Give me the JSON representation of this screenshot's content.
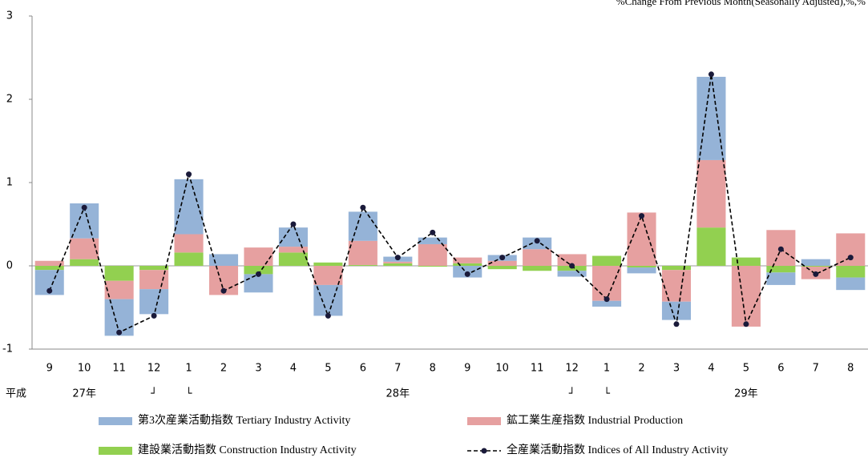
{
  "chart_data": {
    "type": "bar",
    "title": "%Change From Previous Month(Seasonally Adjusted),%,%",
    "categories": [
      "9",
      "10",
      "11",
      "12",
      "1",
      "2",
      "3",
      "4",
      "5",
      "6",
      "7",
      "8",
      "9",
      "10",
      "11",
      "12",
      "1",
      "2",
      "3",
      "4",
      "5",
      "6",
      "7",
      "8"
    ],
    "period_labels": [
      "平成",
      "27年",
      "┘",
      "└",
      "28年",
      "┘",
      "└",
      "29年"
    ],
    "ylim": [
      -1,
      3
    ],
    "yticks": [
      -1,
      0,
      1,
      2,
      3
    ],
    "grid": false,
    "series": [
      {
        "name": "第3次産業活動指数 Tertiary Industry Activity",
        "color": "#95b3d7",
        "values": [
          -0.3,
          0.42,
          -0.44,
          -0.3,
          0.66,
          0.14,
          -0.22,
          0.23,
          -0.37,
          0.35,
          0.06,
          0.08,
          -0.14,
          0.07,
          0.14,
          -0.07,
          -0.07,
          -0.07,
          -0.22,
          1.0,
          0,
          -0.15,
          0.08,
          -0.15
        ]
      },
      {
        "name": "鉱工業生産指数 Industrial Production",
        "color": "#e6a0a0",
        "values": [
          0.06,
          0.25,
          -0.22,
          -0.23,
          0.22,
          -0.35,
          0.22,
          0.07,
          -0.23,
          0.29,
          0.02,
          0.26,
          0.07,
          0.06,
          0.2,
          0.14,
          -0.42,
          0.64,
          -0.38,
          0.81,
          -0.73,
          0.43,
          -0.15,
          0.39
        ]
      },
      {
        "name": "建設業活動指数 Construction Industry Activity",
        "color": "#92d050",
        "values": [
          -0.05,
          0.08,
          -0.18,
          -0.05,
          0.16,
          0,
          -0.1,
          0.16,
          0.04,
          0.01,
          0.03,
          -0.01,
          0.03,
          -0.04,
          -0.06,
          -0.06,
          0.12,
          -0.02,
          -0.05,
          0.46,
          0.1,
          -0.08,
          -0.01,
          -0.14
        ]
      },
      {
        "name": "全産業活動指数  Indices of All Industry Activity",
        "color": "#000000",
        "type": "line",
        "values": [
          -0.3,
          0.7,
          -0.8,
          -0.6,
          1.1,
          -0.3,
          -0.1,
          0.5,
          -0.6,
          0.7,
          0.1,
          0.4,
          -0.1,
          0.1,
          0.3,
          0,
          -0.4,
          0.6,
          -0.7,
          2.3,
          -0.7,
          0.2,
          -0.1,
          0.1
        ]
      }
    ]
  }
}
